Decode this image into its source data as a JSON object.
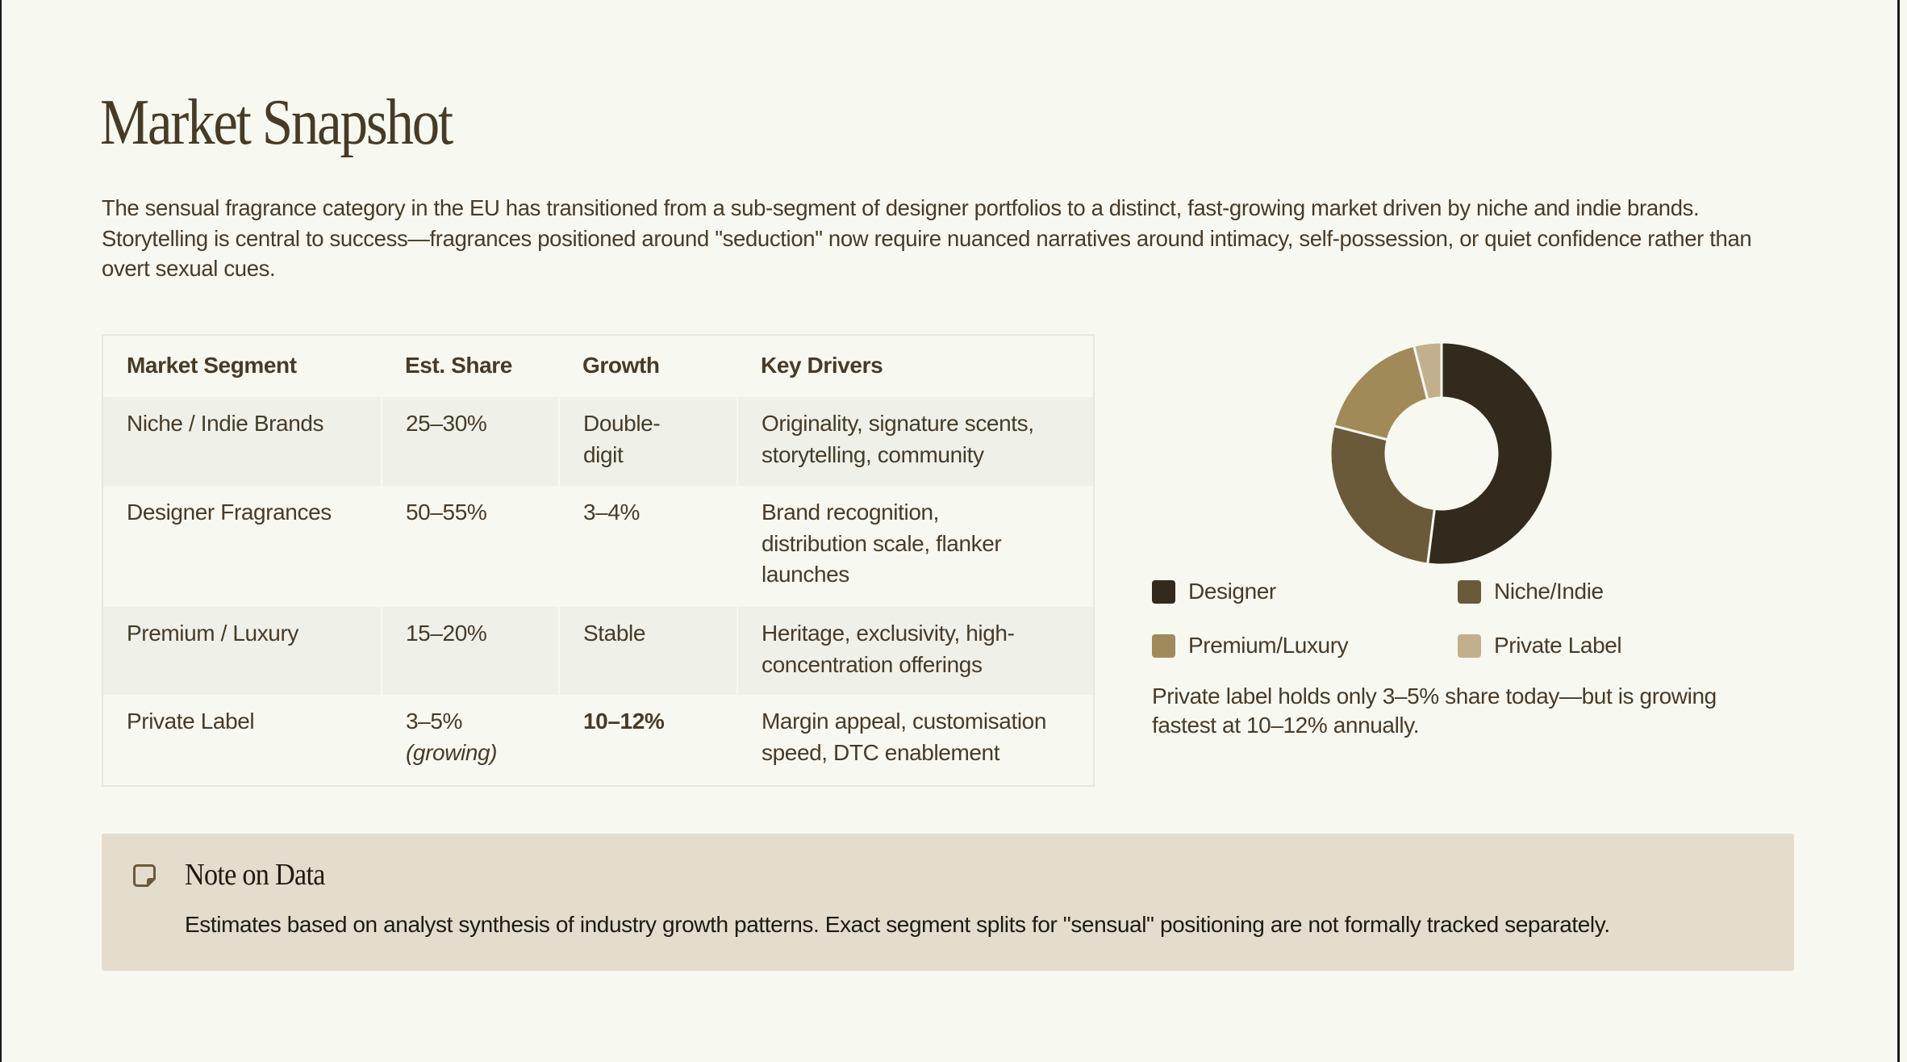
{
  "page": {
    "title": "Market Snapshot",
    "intro": "The sensual fragrance category in the EU has transitioned from a sub-segment of designer portfolios to a distinct, fast-growing market driven by niche and indie brands. Storytelling is central to success—fragrances positioned around \"seduction\" now require nuanced narratives around intimacy, self-possession, or quiet confidence rather than overt sexual cues."
  },
  "table": {
    "headers": [
      "Market Segment",
      "Est. Share",
      "Growth",
      "Key Drivers"
    ],
    "rows": [
      {
        "segment": "Niche / Indie Brands",
        "share": "25–30%",
        "share_note": "",
        "growth": "Double-digit",
        "drivers": "Originality, signature scents, storytelling, community"
      },
      {
        "segment": "Designer Fragrances",
        "share": "50–55%",
        "share_note": "",
        "growth": "3–4%",
        "drivers": "Brand recognition, distribution scale, flanker launches"
      },
      {
        "segment": "Premium / Luxury",
        "share": "15–20%",
        "share_note": "",
        "growth": "Stable",
        "drivers": "Heritage, exclusivity, high-concentration offerings"
      },
      {
        "segment": "Private Label",
        "share": "3–5%",
        "share_note": "(growing)",
        "growth": "10–12%",
        "drivers": "Margin appeal, customisation speed, DTC enablement"
      }
    ]
  },
  "chart": {
    "legend": [
      {
        "label": "Designer",
        "color": "#322a1c"
      },
      {
        "label": "Niche/Indie",
        "color": "#6a5a3a"
      },
      {
        "label": "Premium/Luxury",
        "color": "#a08a58"
      },
      {
        "label": "Private Label",
        "color": "#c2b08c"
      }
    ],
    "caption": "Private label holds only 3–5% share today—but is growing fastest at 10–12% annually."
  },
  "chart_data": {
    "type": "pie",
    "variant": "donut",
    "title": "",
    "categories": [
      "Designer",
      "Niche/Indie",
      "Premium/Luxury",
      "Private Label"
    ],
    "values": [
      52,
      27,
      17,
      4
    ],
    "colors": [
      "#322a1c",
      "#6a5a3a",
      "#a08a58",
      "#c2b08c"
    ],
    "start_angle": "top, clockwise",
    "legend_position": "bottom",
    "caption": "Private label holds only 3–5% share today—but is growing fastest at 10–12% annually."
  },
  "note": {
    "icon": "sticky-note-icon",
    "title": "Note on Data",
    "body": "Estimates based on analyst synthesis of industry growth patterns. Exact segment splits for \"sensual\" positioning are not formally tracked separately."
  },
  "colors": {
    "background": "#f7f9f1",
    "text": "#463b27",
    "row_shade": "#eff1e9",
    "note_bg": "#e4ddcd",
    "note_icon": "#6b5a3a"
  }
}
